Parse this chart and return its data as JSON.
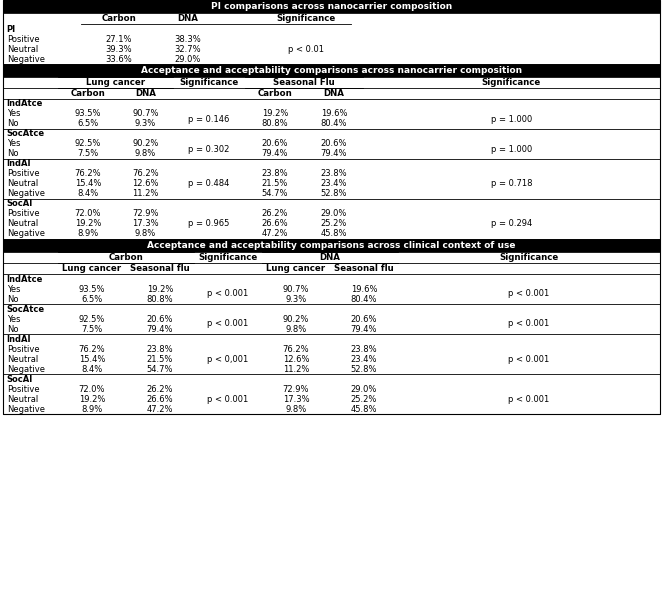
{
  "title1": "PI comparisons across nanocarrier composition",
  "title2": "Acceptance and acceptability comparisons across nanocarrier composition",
  "title3": "Acceptance and acceptability comparisons across clinical context of use",
  "section1": {
    "rows": [
      [
        "Positive",
        "27.1%",
        "38.3%",
        ""
      ],
      [
        "Neutral",
        "39.3%",
        "32.7%",
        "p < 0.01"
      ],
      [
        "Negative",
        "33.6%",
        "29.0%",
        ""
      ]
    ]
  },
  "section2": {
    "blocks": [
      {
        "label": "IndAtce",
        "rows": [
          [
            "Yes",
            "93.5%",
            "90.7%",
            "p = 0.146",
            "19.2%",
            "19.6%",
            "p = 1.000"
          ],
          [
            "No",
            "6.5%",
            "9.3%",
            "",
            "80.8%",
            "80.4%",
            ""
          ]
        ]
      },
      {
        "label": "SocAtce",
        "rows": [
          [
            "Yes",
            "92.5%",
            "90.2%",
            "p = 0.302",
            "20.6%",
            "20.6%",
            "p = 1.000"
          ],
          [
            "No",
            "7.5%",
            "9.8%",
            "",
            "79.4%",
            "79.4%",
            ""
          ]
        ]
      },
      {
        "label": "IndAI",
        "rows": [
          [
            "Positive",
            "76.2%",
            "76.2%",
            "p = 0.484",
            "23.8%",
            "23.8%",
            "p = 0.718"
          ],
          [
            "Neutral",
            "15.4%",
            "12.6%",
            "",
            "21.5%",
            "23.4%",
            ""
          ],
          [
            "Negative",
            "8.4%",
            "11.2%",
            "",
            "54.7%",
            "52.8%",
            ""
          ]
        ]
      },
      {
        "label": "SocAI",
        "rows": [
          [
            "Positive",
            "72.0%",
            "72.9%",
            "p = 0.965",
            "26.2%",
            "29.0%",
            "p = 0.294"
          ],
          [
            "Neutral",
            "19.2%",
            "17.3%",
            "",
            "26.6%",
            "25.2%",
            ""
          ],
          [
            "Negative",
            "8.9%",
            "9.8%",
            "",
            "47.2%",
            "45.8%",
            ""
          ]
        ]
      }
    ]
  },
  "section3": {
    "blocks": [
      {
        "label": "IndAtce",
        "rows": [
          [
            "Yes",
            "93.5%",
            "19.2%",
            "p < 0.001",
            "90.7%",
            "19.6%",
            "p < 0.001"
          ],
          [
            "No",
            "6.5%",
            "80.8%",
            "",
            "9.3%",
            "80.4%",
            ""
          ]
        ]
      },
      {
        "label": "SocAtce",
        "rows": [
          [
            "Yes",
            "92.5%",
            "20.6%",
            "p < 0.001",
            "90.2%",
            "20.6%",
            "p < 0.001"
          ],
          [
            "No",
            "7.5%",
            "79.4%",
            "",
            "9.8%",
            "79.4%",
            ""
          ]
        ]
      },
      {
        "label": "IndAI",
        "rows": [
          [
            "Positive",
            "76.2%",
            "23.8%",
            "p < 0,001",
            "76.2%",
            "23.8%",
            "p < 0.001"
          ],
          [
            "Neutral",
            "15.4%",
            "21.5%",
            "",
            "12.6%",
            "23.4%",
            ""
          ],
          [
            "Negative",
            "8.4%",
            "54.7%",
            "",
            "11.2%",
            "52.8%",
            ""
          ]
        ]
      },
      {
        "label": "SocAI",
        "rows": [
          [
            "Positive",
            "72.0%",
            "26.2%",
            "p < 0.001",
            "72.9%",
            "29.0%",
            "p < 0.001"
          ],
          [
            "Neutral",
            "19.2%",
            "26.6%",
            "",
            "17.3%",
            "25.2%",
            ""
          ],
          [
            "Negative",
            "8.9%",
            "47.2%",
            "",
            "9.8%",
            "45.8%",
            ""
          ]
        ]
      }
    ]
  }
}
